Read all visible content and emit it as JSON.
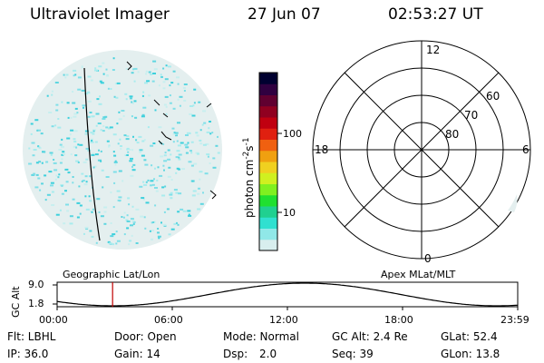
{
  "header": {
    "title": "Ultraviolet Imager",
    "date": "27 Jun 07",
    "time": "02:53:27 UT"
  },
  "colorbar": {
    "unit_label": "photon cm",
    "unit_exp1": "-2",
    "unit_s": "s",
    "unit_exp2": "-1",
    "ticks": [
      "100",
      "10"
    ],
    "colors": [
      "#000030",
      "#300040",
      "#600030",
      "#900020",
      "#c00010",
      "#e02010",
      "#f06010",
      "#f0a010",
      "#f0d020",
      "#d0f020",
      "#80f020",
      "#20e030",
      "#20d090",
      "#30e0d0",
      "#90e8e8",
      "#d8eeee"
    ]
  },
  "polar": {
    "mlt_labels": [
      "12",
      "18",
      "6",
      "0"
    ],
    "lat_labels": [
      "60",
      "70",
      "80"
    ]
  },
  "timeline": {
    "left_label": "Geographic Lat/Lon",
    "right_label": "Apex MLat/MLT",
    "y_axis_label": "GC Alt",
    "y_ticks": [
      "9.0",
      "1.8"
    ],
    "x_ticks": [
      "00:00",
      "06:00",
      "12:00",
      "18:00",
      "23:59"
    ],
    "cursor_hour": 2.89,
    "cursor_color": "#c00000"
  },
  "info": {
    "flt": "Flt: LBHL",
    "ip": "IP: 36.0",
    "door": "Door: Open",
    "gain": "Gain: 14",
    "mode": "Mode: Normal",
    "dsp_label": "Dsp:",
    "dsp_value": "2.0",
    "gc_alt": "GC Alt: 2.4 Re",
    "seq": "Seq: 39",
    "glat": "GLat:  52.4",
    "glon": "GLon:  13.8"
  }
}
